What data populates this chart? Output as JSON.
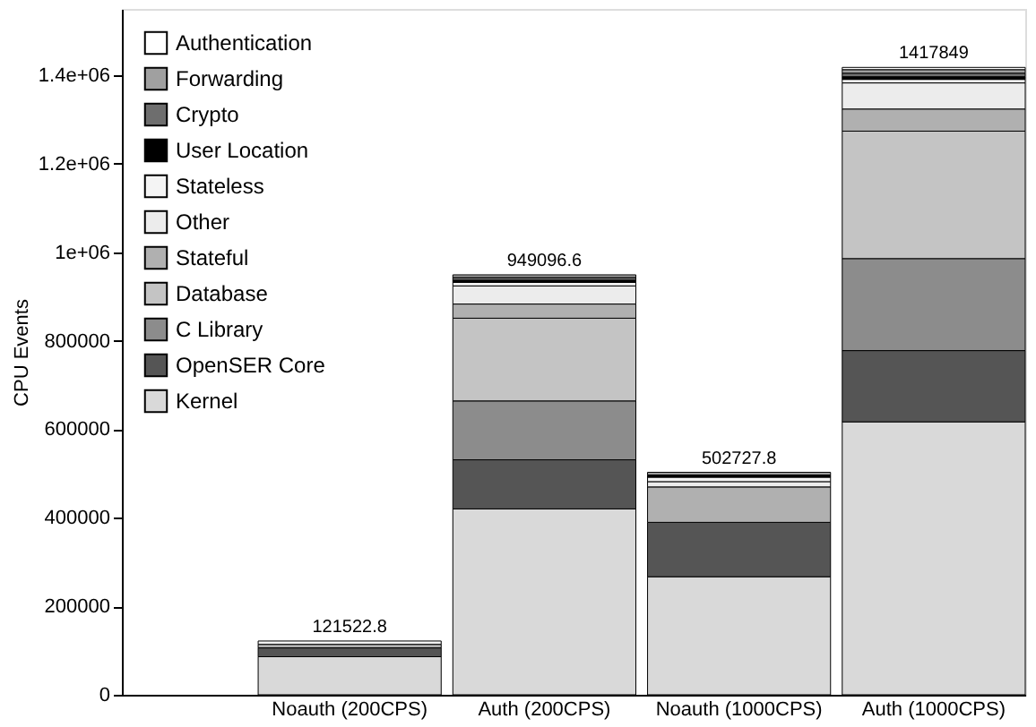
{
  "chart_data": {
    "type": "bar",
    "stacked": true,
    "ylabel": "CPU Events",
    "categories": [
      "Noauth (200CPS)",
      "Auth (200CPS)",
      "Noauth (1000CPS)",
      "Auth (1000CPS)"
    ],
    "series": [
      {
        "name": "Kernel",
        "color": "#d9d9d9",
        "values": [
          86022.8,
          420096.6,
          266727.8,
          616849
        ]
      },
      {
        "name": "OpenSER Core",
        "color": "#555555",
        "values": [
          20000,
          111000,
          123000,
          161000
        ]
      },
      {
        "name": "C Library",
        "color": "#8c8c8c",
        "values": [
          null,
          133000,
          null,
          208000
        ]
      },
      {
        "name": "Database",
        "color": "#c4c4c4",
        "values": [
          null,
          187000,
          null,
          288000
        ]
      },
      {
        "name": "Stateful",
        "color": "#b0b0b0",
        "values": [
          8000,
          32000,
          80000,
          50000
        ]
      },
      {
        "name": "Other",
        "color": "#ececec",
        "values": [
          null,
          41000,
          12000,
          59000
        ]
      },
      {
        "name": "Stateless",
        "color": "#f4f4f4",
        "values": [
          7500,
          8000,
          10000,
          8000
        ]
      },
      {
        "name": "User Location",
        "color": "#000000",
        "values": [
          null,
          5000,
          5000,
          6000
        ]
      },
      {
        "name": "Crypto",
        "color": "#6e6e6e",
        "values": [
          null,
          6000,
          null,
          8000
        ]
      },
      {
        "name": "Forwarding",
        "color": "#a0a0a0",
        "values": [
          null,
          6000,
          6000,
          8000
        ]
      },
      {
        "name": "Authentication",
        "color": "#ffffff",
        "values": [
          null,
          null,
          null,
          5000
        ]
      }
    ],
    "totals": [
      "121522.8",
      "949096.6",
      "502727.8",
      "1417849"
    ],
    "ylim": [
      0,
      1550000
    ],
    "yticks": [
      0,
      200000,
      400000,
      600000,
      800000,
      {
        "value": 1000000,
        "label": "1e+06"
      },
      {
        "value": 1200000,
        "label": "1.2e+06"
      },
      {
        "value": 1400000,
        "label": "1.4e+06"
      }
    ],
    "grid": false,
    "legend": "top left"
  }
}
